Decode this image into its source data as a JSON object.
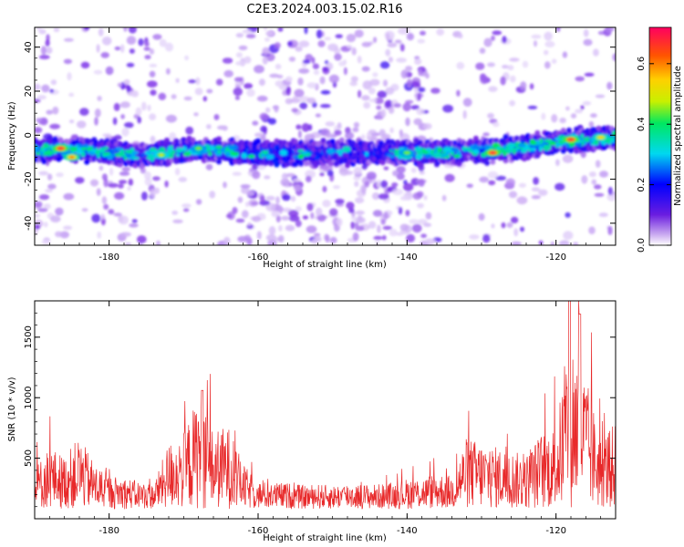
{
  "title": "C2E3.2024.003.15.02.R16",
  "colorbar": {
    "label": "Normalized spectral amplitude",
    "ticks": [
      "0.0",
      "0.2",
      "0.4",
      "0.6"
    ],
    "range": [
      0,
      0.72
    ]
  },
  "chart_data": [
    {
      "type": "heatmap",
      "title": "",
      "xlabel": "Height of straight line (km)",
      "ylabel": "Frequency (Hz)",
      "xlim": [
        -190,
        -112
      ],
      "ylim": [
        -50,
        49
      ],
      "xticks": [
        -180,
        -160,
        -140,
        -120
      ],
      "yticks": [
        -40,
        -20,
        0,
        20,
        40
      ],
      "band_center_hz": [
        [
          -190,
          -7
        ],
        [
          -185,
          -6
        ],
        [
          -180,
          -8
        ],
        [
          -175,
          -9
        ],
        [
          -170,
          -7
        ],
        [
          -165,
          -7
        ],
        [
          -160,
          -8
        ],
        [
          -155,
          -8
        ],
        [
          -150,
          -8
        ],
        [
          -145,
          -8
        ],
        [
          -140,
          -8
        ],
        [
          -135,
          -8
        ],
        [
          -130,
          -7
        ],
        [
          -125,
          -6
        ],
        [
          -120,
          -3
        ],
        [
          -115,
          -2
        ],
        [
          -112,
          -1
        ]
      ],
      "hotspots": [
        {
          "x": -186.5,
          "f": -6,
          "amplitude": 0.7
        },
        {
          "x": -185,
          "f": -10,
          "amplitude": 0.6
        },
        {
          "x": -173,
          "f": -9,
          "amplitude": 0.5
        },
        {
          "x": -168,
          "f": -6,
          "amplitude": 0.45
        },
        {
          "x": -140,
          "f": -8,
          "amplitude": 0.45
        },
        {
          "x": -128.5,
          "f": -8,
          "amplitude": 0.7
        },
        {
          "x": -118,
          "f": -2,
          "amplitude": 0.7
        },
        {
          "x": -114,
          "f": -1,
          "amplitude": 0.55
        }
      ]
    },
    {
      "type": "line",
      "title": "",
      "xlabel": "Height of straight line (km)",
      "ylabel": "SNR (10 * v/v)",
      "xlim": [
        -190,
        -112
      ],
      "ylim": [
        0,
        1800
      ],
      "xticks": [
        -180,
        -160,
        -140,
        -120
      ],
      "yticks": [
        500,
        1000,
        1500
      ],
      "color": "#e8292a",
      "series": [
        {
          "x": [
            -190,
            -188,
            -186,
            -184,
            -182,
            -180,
            -178,
            -176,
            -174,
            -172,
            -170,
            -168,
            -166,
            -164,
            -162,
            -160,
            -158,
            -156,
            -154,
            -152,
            -150,
            -148,
            -146,
            -144,
            -142,
            -140,
            -138,
            -136,
            -134,
            -132,
            -130,
            -128,
            -126,
            -124,
            -122,
            -120,
            -118,
            -116,
            -114,
            -112
          ],
          "values": [
            300,
            450,
            380,
            520,
            330,
            240,
            230,
            200,
            180,
            480,
            550,
            820,
            560,
            600,
            320,
            200,
            190,
            190,
            170,
            180,
            170,
            190,
            180,
            180,
            190,
            220,
            230,
            260,
            240,
            520,
            480,
            450,
            420,
            390,
            550,
            600,
            1280,
            950,
            520,
            620
          ]
        }
      ]
    }
  ]
}
